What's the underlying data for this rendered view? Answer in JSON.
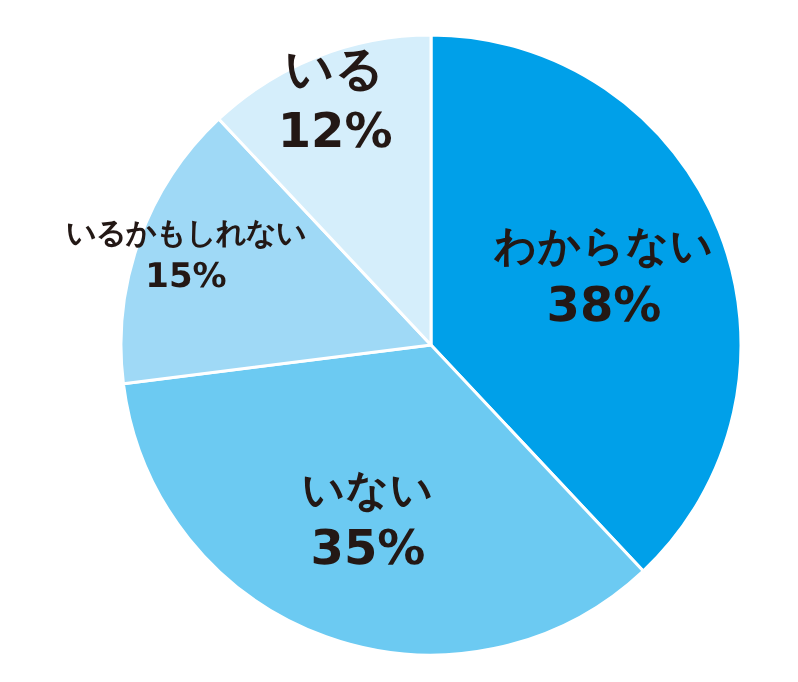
{
  "chart_data": {
    "type": "pie",
    "categories": [
      "わからない",
      "いない",
      "いるかもしれない",
      "いる"
    ],
    "values": [
      38,
      35,
      15,
      12
    ],
    "colors": [
      "#00a0e9",
      "#6ccaf2",
      "#9fd9f6",
      "#d5eefb"
    ],
    "value_labels": [
      "38%",
      "35%",
      "15%",
      "12%"
    ]
  }
}
